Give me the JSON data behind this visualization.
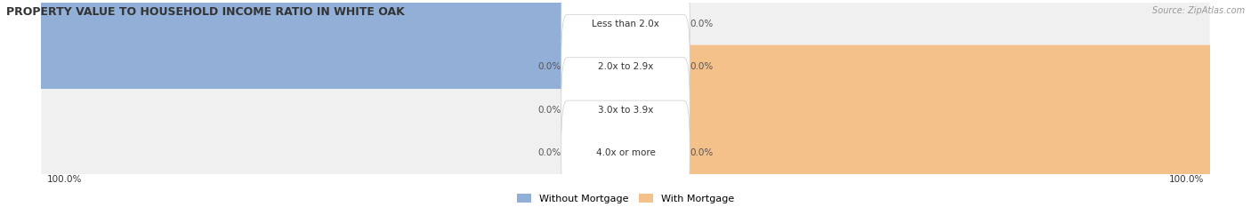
{
  "title": "PROPERTY VALUE TO HOUSEHOLD INCOME RATIO IN WHITE OAK",
  "source": "Source: ZipAtlas.com",
  "categories": [
    "Less than 2.0x",
    "2.0x to 2.9x",
    "3.0x to 3.9x",
    "4.0x or more"
  ],
  "without_mortgage": [
    100.0,
    0.0,
    0.0,
    0.0
  ],
  "with_mortgage": [
    0.0,
    0.0,
    100.0,
    0.0
  ],
  "color_without": "#92afd7",
  "color_with": "#f5c18a",
  "row_bg_color": "#f0f0f0",
  "legend_without": "Without Mortgage",
  "legend_with": "With Mortgage",
  "figsize": [
    14.06,
    2.33
  ],
  "dpi": 100
}
